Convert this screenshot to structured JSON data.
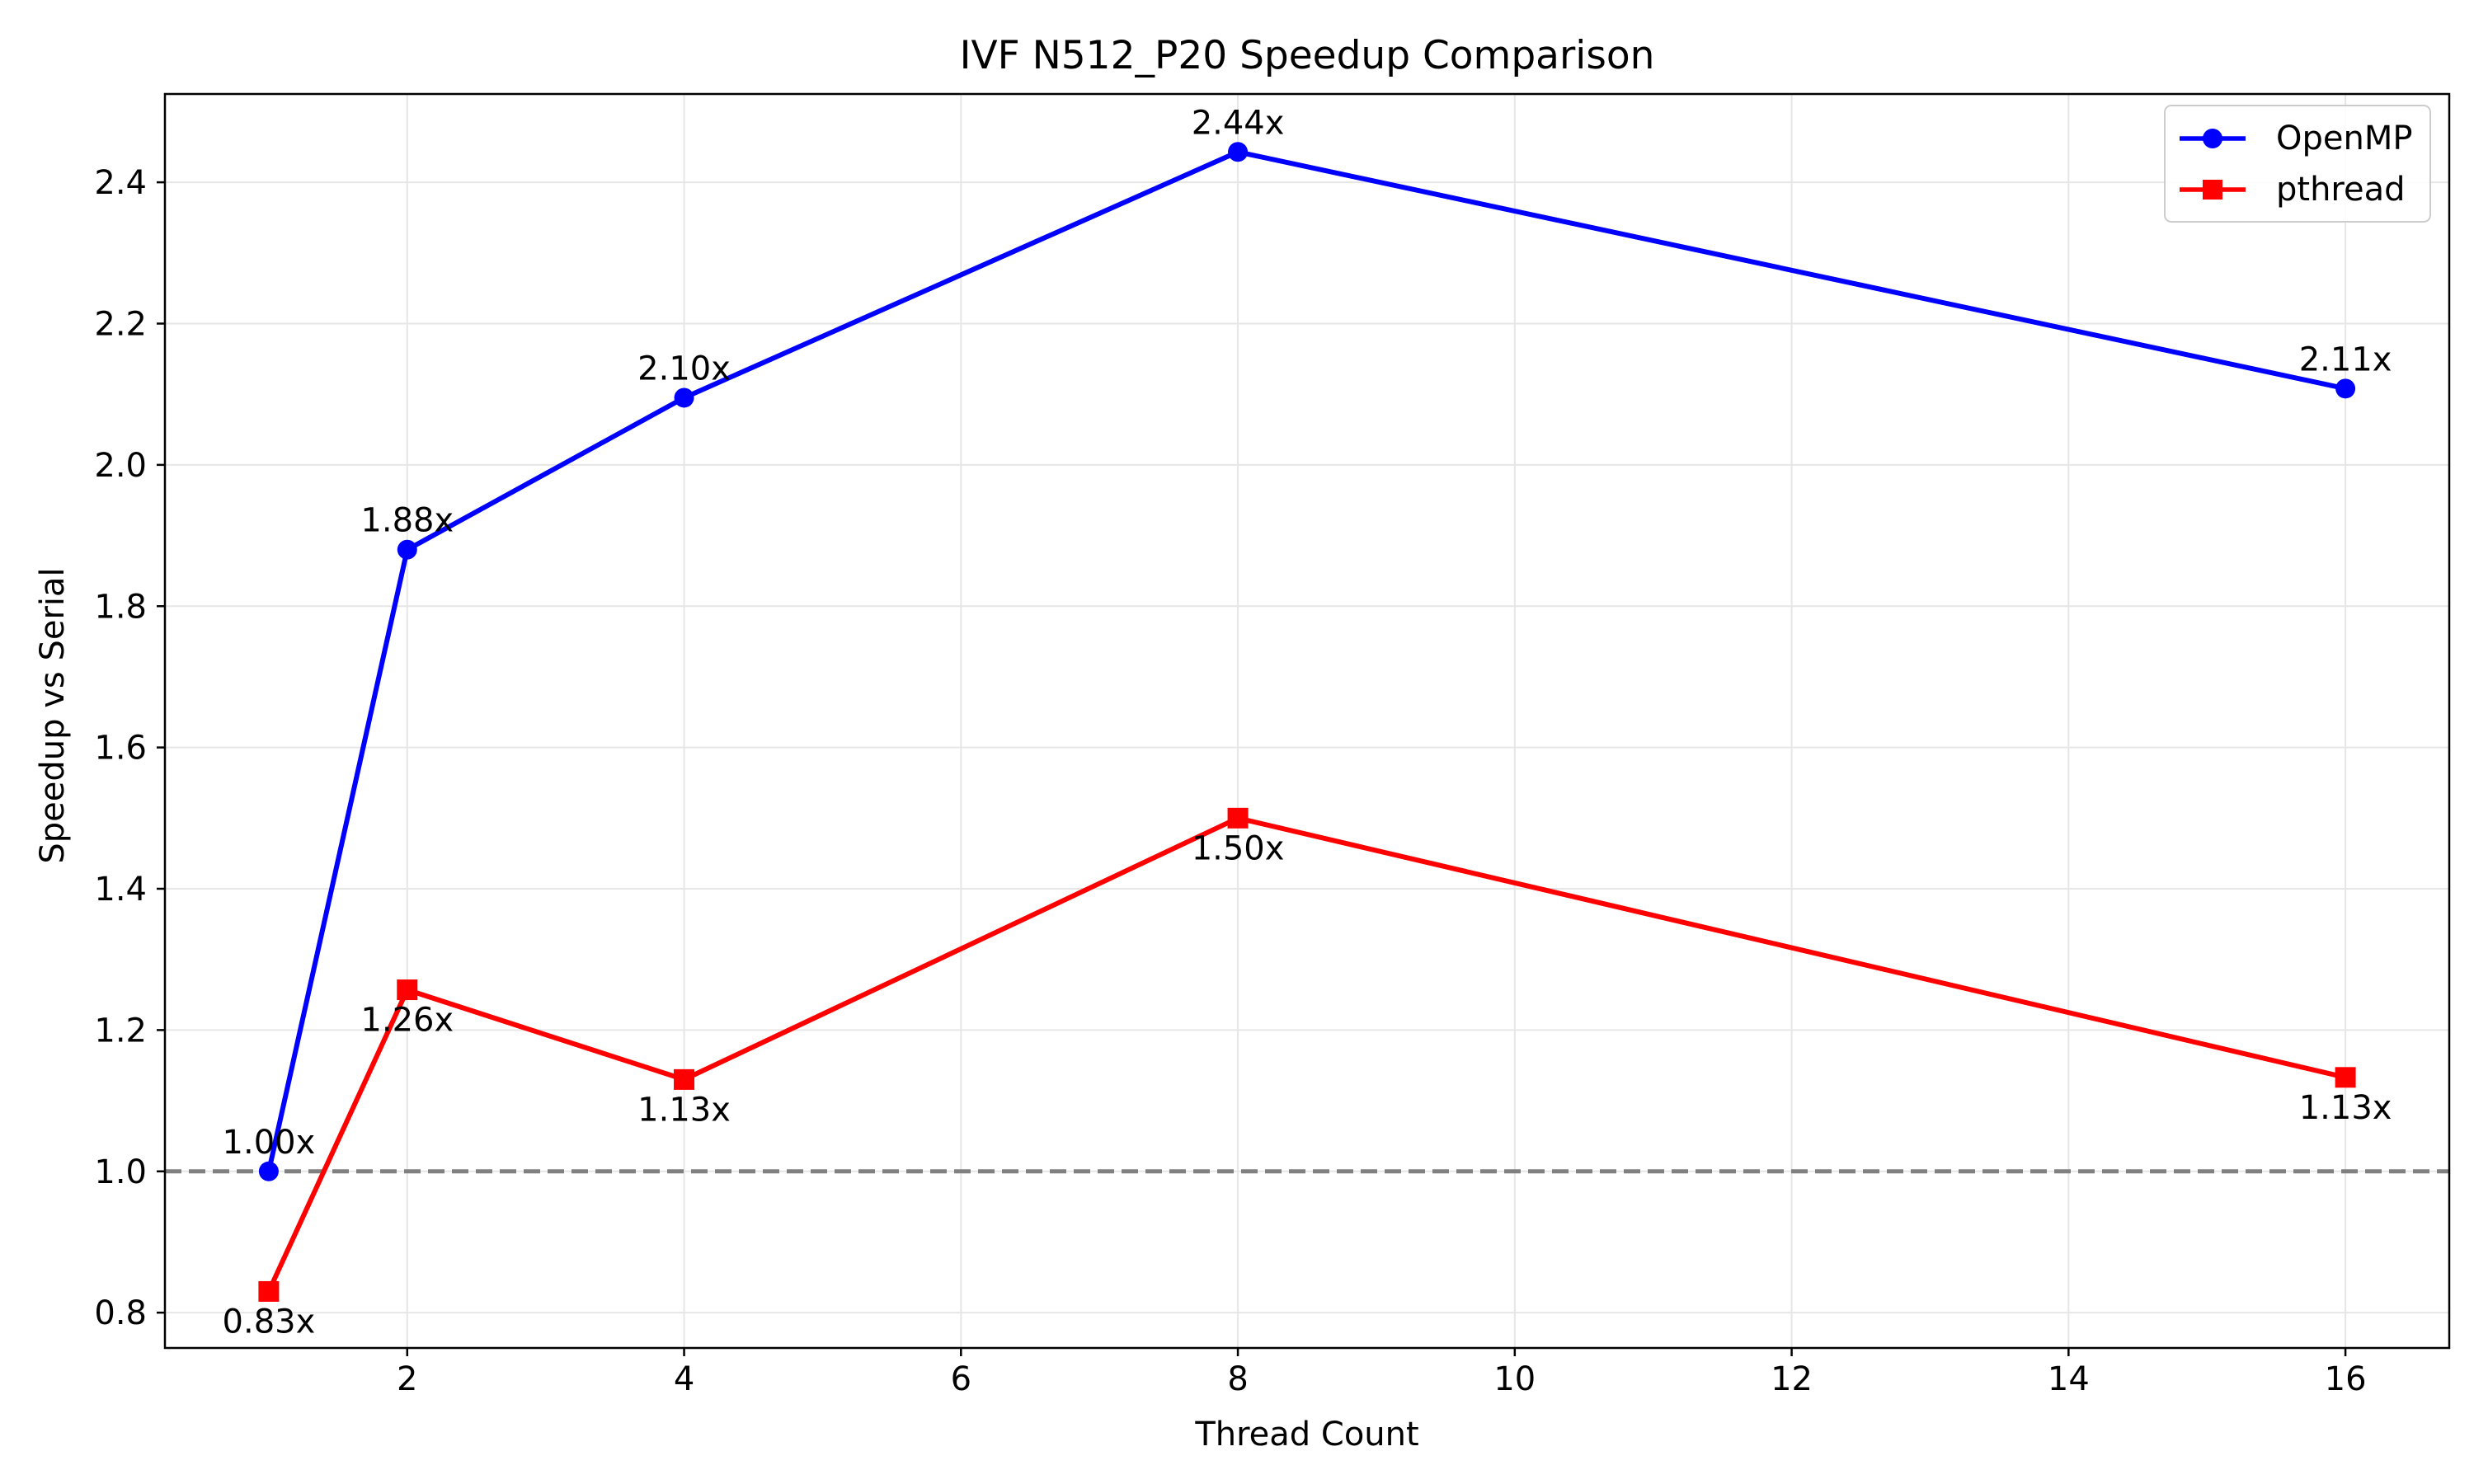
{
  "chart_data": {
    "type": "line",
    "title": "IVF N512_P20 Speedup Comparison",
    "xlabel": "Thread Count",
    "ylabel": "Speedup vs Serial",
    "xlim": [
      0.25,
      16.75
    ],
    "ylim": [
      0.75,
      2.525
    ],
    "x_ticks": [
      2,
      4,
      6,
      8,
      10,
      12,
      14,
      16
    ],
    "x_tick_labels": [
      "2",
      "4",
      "6",
      "8",
      "10",
      "12",
      "14",
      "16"
    ],
    "y_ticks": [
      0.8,
      1.0,
      1.2,
      1.4,
      1.6,
      1.8,
      2.0,
      2.2,
      2.4
    ],
    "y_tick_labels": [
      "0.8",
      "1.0",
      "1.2",
      "1.4",
      "1.6",
      "1.8",
      "2.0",
      "2.2",
      "2.4"
    ],
    "grid": true,
    "legend_position": "top-right",
    "x": [
      1,
      2,
      4,
      8,
      16
    ],
    "series": [
      {
        "name": "OpenMP",
        "color": "#0000ff",
        "marker": "circle",
        "values": [
          1.0,
          1.88,
          2.095,
          2.443,
          2.108
        ],
        "labels": [
          "1.00x",
          "1.88x",
          "2.10x",
          "2.44x",
          "2.11x"
        ],
        "label_side": "above"
      },
      {
        "name": "pthread",
        "color": "#ff0000",
        "marker": "square",
        "values": [
          0.83,
          1.257,
          1.13,
          1.5,
          1.133
        ],
        "labels": [
          "0.83x",
          "1.26x",
          "1.13x",
          "1.50x",
          "1.13x"
        ],
        "label_side": "below"
      }
    ],
    "reference_line": {
      "y": 1.0,
      "color": "#808080",
      "style": "dashed"
    }
  }
}
